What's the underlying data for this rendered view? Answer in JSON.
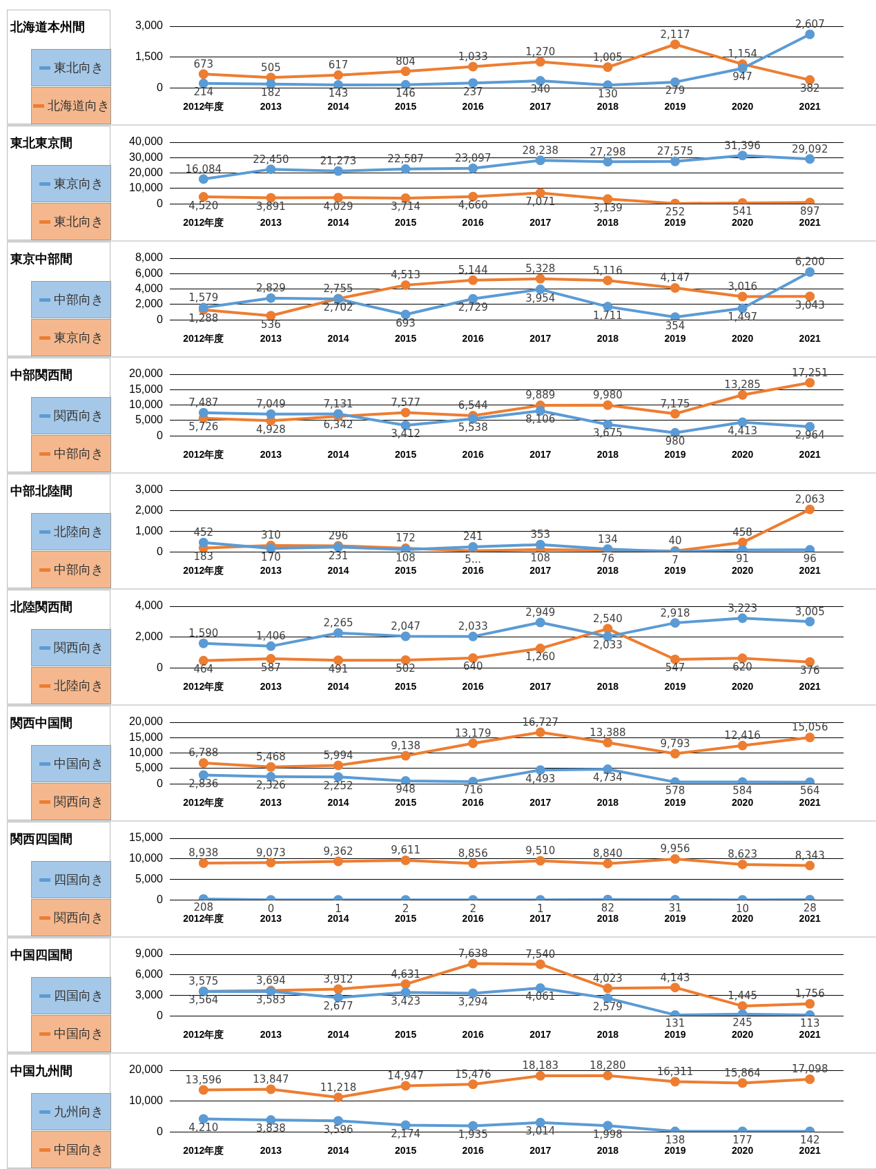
{
  "chart_data": [
    {
      "type": "line",
      "title": "北海道本州間",
      "categories": [
        "2012年度",
        "2013",
        "2014",
        "2015",
        "2016",
        "2017",
        "2018",
        "2019",
        "2020",
        "2021"
      ],
      "ylim": [
        0,
        3000
      ],
      "yticks": [
        {
          "value": 0,
          "label": "0"
        },
        {
          "value": 1500,
          "label": "1,500"
        },
        {
          "value": 3000,
          "label": "3,000"
        }
      ],
      "grid": "y",
      "marker": "circle",
      "legend": "left",
      "series": [
        {
          "name": "東北向き",
          "color": "#5b9bd5",
          "values": [
            214,
            182,
            143,
            146,
            237,
            340,
            130,
            279,
            947,
            2607
          ],
          "value_labels": [
            "214",
            "182",
            "143",
            "146",
            "237",
            "340",
            "130",
            "279",
            "947",
            "2,607"
          ]
        },
        {
          "name": "北海道向き",
          "color": "#ed7d31",
          "values": [
            673,
            505,
            617,
            804,
            1033,
            1270,
            1005,
            2117,
            1154,
            382
          ],
          "value_labels": [
            "673",
            "505",
            "617",
            "804",
            "1,033",
            "1,270",
            "1,005",
            "2,117",
            "1,154",
            "382"
          ]
        }
      ]
    },
    {
      "type": "line",
      "title": "東北東京間",
      "categories": [
        "2012年度",
        "2013",
        "2014",
        "2015",
        "2016",
        "2017",
        "2018",
        "2019",
        "2020",
        "2021"
      ],
      "ylim": [
        0,
        40000
      ],
      "yticks": [
        {
          "value": 0,
          "label": "0"
        },
        {
          "value": 10000,
          "label": "10,000"
        },
        {
          "value": 20000,
          "label": "20,000"
        },
        {
          "value": 30000,
          "label": "30,000"
        },
        {
          "value": 40000,
          "label": "40,000"
        }
      ],
      "grid": "y",
      "marker": "circle",
      "legend": "left",
      "series": [
        {
          "name": "東京向き",
          "color": "#5b9bd5",
          "values": [
            16084,
            22450,
            21273,
            22587,
            23097,
            28238,
            27298,
            27575,
            31396,
            29092
          ],
          "value_labels": [
            "16,084",
            "22,450",
            "21,273",
            "22,587",
            "23,097",
            "28,238",
            "27,298",
            "27,575",
            "31,396",
            "29,092"
          ]
        },
        {
          "name": "東北向き",
          "color": "#ed7d31",
          "values": [
            4520,
            3891,
            4029,
            3714,
            4660,
            7071,
            3139,
            252,
            541,
            897
          ],
          "value_labels": [
            "4,520",
            "3,891",
            "4,029",
            "3,714",
            "4,660",
            "7,071",
            "3,139",
            "252",
            "541",
            "897"
          ]
        }
      ]
    },
    {
      "type": "line",
      "title": "東京中部間",
      "categories": [
        "2012年度",
        "2013",
        "2014",
        "2015",
        "2016",
        "2017",
        "2018",
        "2019",
        "2020",
        "2021"
      ],
      "ylim": [
        0,
        8000
      ],
      "yticks": [
        {
          "value": 0,
          "label": "0"
        },
        {
          "value": 2000,
          "label": "2,000"
        },
        {
          "value": 4000,
          "label": "4,000"
        },
        {
          "value": 6000,
          "label": "6,000"
        },
        {
          "value": 8000,
          "label": "8,000"
        }
      ],
      "grid": "y",
      "marker": "circle",
      "legend": "left",
      "series": [
        {
          "name": "中部向き",
          "color": "#5b9bd5",
          "values": [
            1579,
            2829,
            2702,
            693,
            2729,
            3954,
            1711,
            354,
            1497,
            6200
          ],
          "value_labels": [
            "1,579",
            "2,829",
            "2,702",
            "693",
            "2,729",
            "3,954",
            "1,711",
            "354",
            "1,497",
            "6,200"
          ]
        },
        {
          "name": "東京向き",
          "color": "#ed7d31",
          "values": [
            1288,
            536,
            2755,
            4513,
            5144,
            5328,
            5116,
            4147,
            3016,
            3043
          ],
          "value_labels": [
            "1,288",
            "536",
            "2,755",
            "4,513",
            "5,144",
            "5,328",
            "5,116",
            "4,147",
            "3,016",
            "3,043"
          ]
        }
      ]
    },
    {
      "type": "line",
      "title": "中部関西間",
      "categories": [
        "2012年度",
        "2013",
        "2014",
        "2015",
        "2016",
        "2017",
        "2018",
        "2019",
        "2020",
        "2021"
      ],
      "ylim": [
        0,
        20000
      ],
      "yticks": [
        {
          "value": 0,
          "label": "0"
        },
        {
          "value": 5000,
          "label": "5,000"
        },
        {
          "value": 10000,
          "label": "10,000"
        },
        {
          "value": 15000,
          "label": "15,000"
        },
        {
          "value": 20000,
          "label": "20,000"
        }
      ],
      "grid": "y",
      "marker": "circle",
      "legend": "left",
      "series": [
        {
          "name": "関西向き",
          "color": "#5b9bd5",
          "values": [
            7487,
            7049,
            7131,
            3412,
            5538,
            8106,
            3675,
            980,
            4413,
            2964
          ],
          "value_labels": [
            "7,487",
            "7,049",
            "7,131",
            "3,412",
            "5,538",
            "8,106",
            "3,675",
            "980",
            "4,413",
            "2,964"
          ]
        },
        {
          "name": "中部向き",
          "color": "#ed7d31",
          "values": [
            5726,
            4928,
            6342,
            7577,
            6544,
            9889,
            9980,
            7175,
            13285,
            17251
          ],
          "value_labels": [
            "5,726",
            "4,928",
            "6,342",
            "7,577",
            "6,544",
            "9,889",
            "9,980",
            "7,175",
            "13,285",
            "17,251"
          ]
        }
      ]
    },
    {
      "type": "line",
      "title": "中部北陸間",
      "categories": [
        "2012年度",
        "2013",
        "2014",
        "2015",
        "2016",
        "2017",
        "2018",
        "2019",
        "2020",
        "2021"
      ],
      "ylim": [
        0,
        3000
      ],
      "yticks": [
        {
          "value": 0,
          "label": "0"
        },
        {
          "value": 1000,
          "label": "1,000"
        },
        {
          "value": 2000,
          "label": "2,000"
        },
        {
          "value": 3000,
          "label": "3,000"
        }
      ],
      "grid": "y",
      "marker": "circle",
      "legend": "left",
      "series": [
        {
          "name": "北陸向き",
          "color": "#5b9bd5",
          "values": [
            452,
            170,
            231,
            108,
            241,
            353,
            134,
            7,
            91,
            96
          ],
          "value_labels": [
            "452",
            "170",
            "231",
            "108",
            "241",
            "353",
            "134",
            "7",
            "91",
            "96"
          ]
        },
        {
          "name": "中部向き",
          "color": "#ed7d31",
          "values": [
            183,
            310,
            296,
            172,
            50,
            108,
            76,
            40,
            458,
            2063
          ],
          "value_labels": [
            "183",
            "310",
            "296",
            "172",
            "5...",
            "108",
            "76",
            "40",
            "458",
            "2,063"
          ]
        }
      ]
    },
    {
      "type": "line",
      "title": "北陸関西間",
      "categories": [
        "2012年度",
        "2013",
        "2014",
        "2015",
        "2016",
        "2017",
        "2018",
        "2019",
        "2020",
        "2021"
      ],
      "ylim": [
        0,
        4000
      ],
      "yticks": [
        {
          "value": 0,
          "label": "0"
        },
        {
          "value": 2000,
          "label": "2,000"
        },
        {
          "value": 4000,
          "label": "4,000"
        }
      ],
      "grid": "y",
      "marker": "circle",
      "legend": "left",
      "series": [
        {
          "name": "関西向き",
          "color": "#5b9bd5",
          "values": [
            1590,
            1406,
            2265,
            2047,
            2033,
            2949,
            2033,
            2918,
            3223,
            3005
          ],
          "value_labels": [
            "1,590",
            "1,406",
            "2,265",
            "2,047",
            "2,033",
            "2,949",
            "2,033",
            "2,918",
            "3,223",
            "3,005"
          ]
        },
        {
          "name": "北陸向き",
          "color": "#ed7d31",
          "values": [
            464,
            587,
            491,
            502,
            640,
            1260,
            2540,
            547,
            620,
            376
          ],
          "value_labels": [
            "464",
            "587",
            "491",
            "502",
            "640",
            "1,260",
            "2,540",
            "547",
            "620",
            "376"
          ]
        }
      ]
    },
    {
      "type": "line",
      "title": "関西中国間",
      "categories": [
        "2012年度",
        "2013",
        "2014",
        "2015",
        "2016",
        "2017",
        "2018",
        "2019",
        "2020",
        "2021"
      ],
      "ylim": [
        0,
        20000
      ],
      "yticks": [
        {
          "value": 0,
          "label": "0"
        },
        {
          "value": 5000,
          "label": "5,000"
        },
        {
          "value": 10000,
          "label": "10,000"
        },
        {
          "value": 15000,
          "label": "15,000"
        },
        {
          "value": 20000,
          "label": "20,000"
        }
      ],
      "grid": "y",
      "marker": "circle",
      "legend": "left",
      "series": [
        {
          "name": "中国向き",
          "color": "#5b9bd5",
          "values": [
            2836,
            2326,
            2252,
            948,
            716,
            4493,
            4734,
            578,
            584,
            564
          ],
          "value_labels": [
            "2,836",
            "2,326",
            "2,252",
            "948",
            "716",
            "4,493",
            "4,734",
            "578",
            "584",
            "564"
          ]
        },
        {
          "name": "関西向き",
          "color": "#ed7d31",
          "values": [
            6788,
            5468,
            5994,
            9138,
            13179,
            16727,
            13388,
            9793,
            12416,
            15056
          ],
          "value_labels": [
            "6,788",
            "5,468",
            "5,994",
            "9,138",
            "13,179",
            "16,727",
            "13,388",
            "9,793",
            "12,416",
            "15,056"
          ]
        }
      ]
    },
    {
      "type": "line",
      "title": "関西四国間",
      "categories": [
        "2012年度",
        "2013",
        "2014",
        "2015",
        "2016",
        "2017",
        "2018",
        "2019",
        "2020",
        "2021"
      ],
      "ylim": [
        0,
        15000
      ],
      "yticks": [
        {
          "value": 0,
          "label": "0"
        },
        {
          "value": 5000,
          "label": "5,000"
        },
        {
          "value": 10000,
          "label": "10,000"
        },
        {
          "value": 15000,
          "label": "15,000"
        }
      ],
      "grid": "y",
      "marker": "circle",
      "legend": "left",
      "series": [
        {
          "name": "四国向き",
          "color": "#5b9bd5",
          "values": [
            208,
            0,
            1,
            2,
            2,
            1,
            82,
            31,
            10,
            28
          ],
          "value_labels": [
            "208",
            "0",
            "1",
            "2",
            "2",
            "1",
            "82",
            "31",
            "10",
            "28"
          ]
        },
        {
          "name": "関西向き",
          "color": "#ed7d31",
          "values": [
            8938,
            9073,
            9362,
            9611,
            8856,
            9510,
            8840,
            9956,
            8623,
            8343
          ],
          "value_labels": [
            "8,938",
            "9,073",
            "9,362",
            "9,611",
            "8,856",
            "9,510",
            "8,840",
            "9,956",
            "8,623",
            "8,343"
          ]
        }
      ]
    },
    {
      "type": "line",
      "title": "中国四国間",
      "categories": [
        "2012年度",
        "2013",
        "2014",
        "2015",
        "2016",
        "2017",
        "2018",
        "2019",
        "2020",
        "2021"
      ],
      "ylim": [
        0,
        9000
      ],
      "yticks": [
        {
          "value": 0,
          "label": "0"
        },
        {
          "value": 3000,
          "label": "3,000"
        },
        {
          "value": 6000,
          "label": "6,000"
        },
        {
          "value": 9000,
          "label": "9,000"
        }
      ],
      "grid": "y",
      "marker": "circle",
      "legend": "left",
      "series": [
        {
          "name": "四国向き",
          "color": "#5b9bd5",
          "values": [
            3564,
            3583,
            2677,
            3423,
            3294,
            4061,
            2579,
            131,
            245,
            113
          ],
          "value_labels": [
            "3,564",
            "3,583",
            "2,677",
            "3,423",
            "3,294",
            "4,061",
            "2,579",
            "131",
            "245",
            "113"
          ]
        },
        {
          "name": "中国向き",
          "color": "#ed7d31",
          "values": [
            3575,
            3694,
            3912,
            4631,
            7638,
            7540,
            4023,
            4143,
            1445,
            1756
          ],
          "value_labels": [
            "3,575",
            "3,694",
            "3,912",
            "4,631",
            "7,638",
            "7,540",
            "4,023",
            "4,143",
            "1,445",
            "1,756"
          ]
        }
      ]
    },
    {
      "type": "line",
      "title": "中国九州間",
      "categories": [
        "2012年度",
        "2013",
        "2014",
        "2015",
        "2016",
        "2017",
        "2018",
        "2019",
        "2020",
        "2021"
      ],
      "ylim": [
        0,
        20000
      ],
      "yticks": [
        {
          "value": 0,
          "label": "0"
        },
        {
          "value": 10000,
          "label": "10,000"
        },
        {
          "value": 20000,
          "label": "20,000"
        }
      ],
      "grid": "y",
      "marker": "circle",
      "legend": "left",
      "series": [
        {
          "name": "九州向き",
          "color": "#5b9bd5",
          "values": [
            4210,
            3838,
            3596,
            2174,
            1935,
            3014,
            1998,
            138,
            177,
            142
          ],
          "value_labels": [
            "4,210",
            "3,838",
            "3,596",
            "2,174",
            "1,935",
            "3,014",
            "1,998",
            "138",
            "177",
            "142"
          ]
        },
        {
          "name": "中国向き",
          "color": "#ed7d31",
          "values": [
            13596,
            13847,
            11218,
            14947,
            15476,
            18183,
            18280,
            16311,
            15864,
            17098
          ],
          "value_labels": [
            "13,596",
            "13,847",
            "11,218",
            "14,947",
            "15,476",
            "18,183",
            "18,280",
            "16,311",
            "15,864",
            "17,098"
          ]
        }
      ]
    }
  ]
}
